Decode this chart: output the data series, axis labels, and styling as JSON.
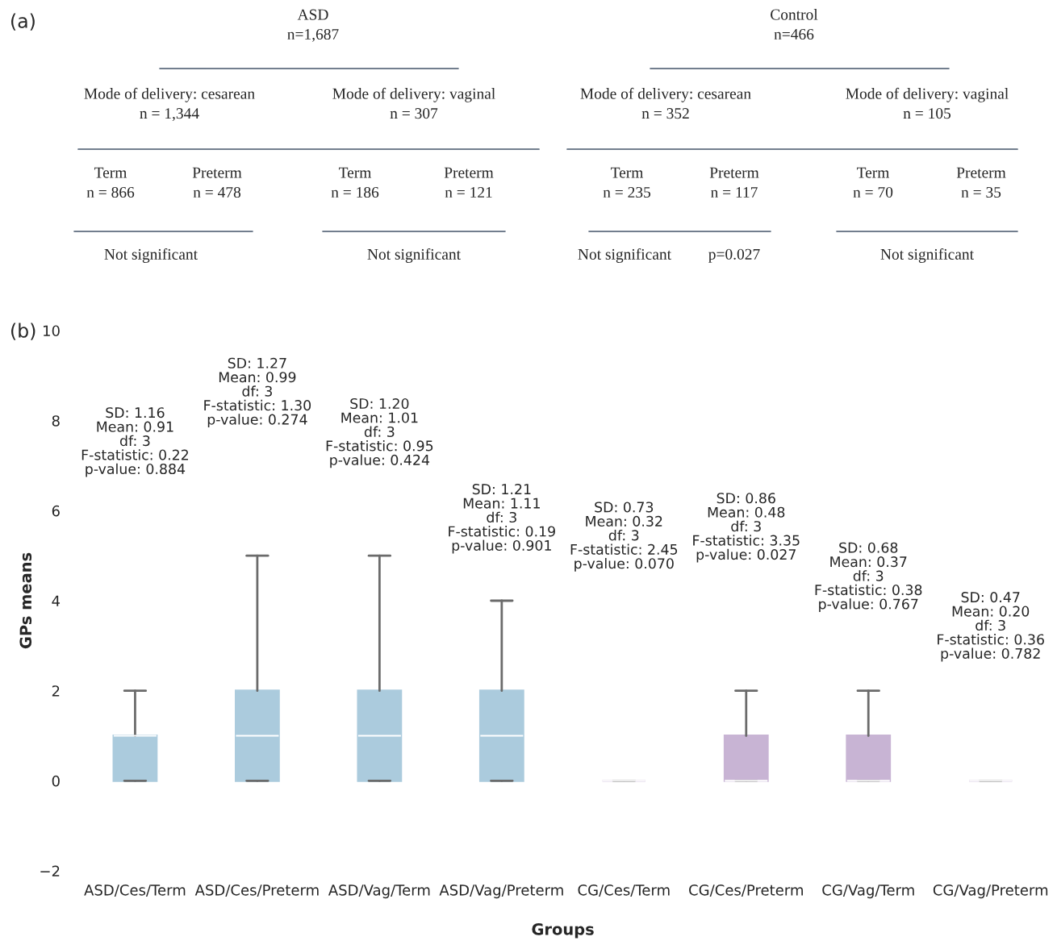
{
  "chart_data": [
    {
      "type": "other",
      "title": "(a)",
      "annotations": [
        "ASD\nn=1,687",
        "Control\nn=466",
        "Mode of delivery: cesarean\nn = 1,344",
        "Mode of delivery: vaginal\nn = 307",
        "Mode of delivery: cesarean\nn = 352",
        "Mode of delivery: vaginal\nn = 105",
        "Term\nn = 866",
        "Preterm\nn = 478",
        "Term\nn = 186",
        "Preterm\nn = 121",
        "Term\nn = 235",
        "Preterm\nn = 117",
        "Term\nn = 70",
        "Preterm\nn = 35",
        "Not significant",
        "Not significant",
        "Not significant",
        "p=0.027",
        "Not significant"
      ]
    },
    {
      "type": "box",
      "title": "(b)",
      "xlabel": "Groups",
      "ylabel": "GPs means",
      "categories": [
        "ASD/Ces/Term",
        "ASD/Ces/Preterm",
        "ASD/Vag/Term",
        "ASD/Vag/Preterm",
        "CG/Ces/Term",
        "CG/Ces/Preterm",
        "CG/Vag/Term",
        "CG/Vag/Preterm"
      ],
      "colors": [
        "#abcbdd",
        "#abcbdd",
        "#abcbdd",
        "#abcbdd",
        "#c8b4d4",
        "#c8b4d4",
        "#c8b4d4",
        "#c8b4d4"
      ],
      "boxes": [
        {
          "low": 0,
          "q1": 0,
          "median": 1,
          "q3": 1,
          "high": 2
        },
        {
          "low": 0,
          "q1": 0,
          "median": 1,
          "q3": 2,
          "high": 5
        },
        {
          "low": 0,
          "q1": 0,
          "median": 1,
          "q3": 2,
          "high": 5
        },
        {
          "low": 0,
          "q1": 0,
          "median": 1,
          "q3": 2,
          "high": 4
        },
        {
          "low": 0,
          "q1": 0,
          "median": 0,
          "q3": 0,
          "high": 0
        },
        {
          "low": 0,
          "q1": 0,
          "median": 0,
          "q3": 1,
          "high": 2
        },
        {
          "low": 0,
          "q1": 0,
          "median": 0,
          "q3": 1,
          "high": 2
        },
        {
          "low": 0,
          "q1": 0,
          "median": 0,
          "q3": 0,
          "high": 0
        }
      ],
      "ylim": [
        -2,
        10
      ],
      "yticks": [
        {
          "value": -2,
          "label": "−2"
        },
        0,
        2,
        4,
        6,
        8,
        10
      ],
      "grid": false,
      "annotations": [
        "SD: 1.16\nMean: 0.91\ndf: 3\nF-statistic: 0.22\np-value: 0.884",
        "SD: 1.27\nMean: 0.99\ndf: 3\nF-statistic: 1.30\np-value: 0.274",
        "SD: 1.20\nMean: 1.01\ndf: 3\nF-statistic: 0.95\np-value: 0.424",
        "SD: 1.21\nMean: 1.11\ndf: 3\nF-statistic: 0.19\np-value: 0.901",
        "SD: 0.73\nMean: 0.32\ndf: 3\nF-statistic: 2.45\np-value: 0.070",
        "SD: 0.86\nMean: 0.48\ndf: 3\nF-statistic: 3.35\np-value: 0.027",
        "SD: 0.68\nMean: 0.37\ndf: 3\nF-statistic: 0.38\np-value: 0.767",
        "SD: 0.47\nMean: 0.20\ndf: 3\nF-statistic: 0.36\np-value: 0.782"
      ]
    }
  ]
}
